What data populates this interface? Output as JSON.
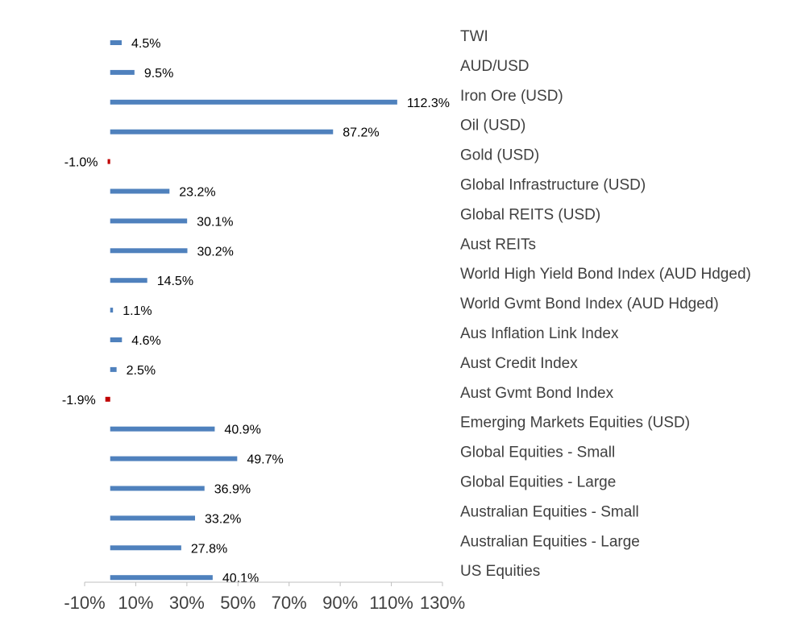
{
  "chart_data": {
    "type": "bar",
    "orientation": "horizontal",
    "categories": [
      "TWI",
      "AUD/USD",
      "Iron Ore (USD)",
      "Oil (USD)",
      "Gold (USD)",
      "Global Infrastructure (USD)",
      "Global REITS (USD)",
      "Aust REITs",
      "World High Yield Bond Index (AUD Hdged)",
      "World Gvmt Bond Index (AUD Hdged)",
      "Aus Inflation Link Index",
      "Aust Credit Index",
      "Aust Gvmt Bond Index",
      "Emerging Markets Equities (USD)",
      "Global Equities - Small",
      "Global Equities - Large",
      "Australian Equities - Small",
      "Australian Equities - Large",
      "US Equities"
    ],
    "values": [
      4.5,
      9.5,
      112.3,
      87.2,
      -1.0,
      23.2,
      30.1,
      30.2,
      14.5,
      1.1,
      4.6,
      2.5,
      -1.9,
      40.9,
      49.7,
      36.9,
      33.2,
      27.8,
      40.1
    ],
    "value_labels": [
      "4.5%",
      "9.5%",
      "112.3%",
      "87.2%",
      "-1.0%",
      "23.2%",
      "30.1%",
      "30.2%",
      "14.5%",
      "1.1%",
      "4.6%",
      "2.5%",
      "-1.9%",
      "40.9%",
      "49.7%",
      "36.9%",
      "33.2%",
      "27.8%",
      "40.1%"
    ],
    "x_ticks": [
      -10,
      10,
      30,
      50,
      70,
      90,
      110,
      130
    ],
    "x_tick_labels": [
      "-10%",
      "10%",
      "30%",
      "50%",
      "70%",
      "90%",
      "110%",
      "130%"
    ],
    "xlim": [
      -10,
      130
    ],
    "title": "",
    "xlabel": "",
    "ylabel": "",
    "grid": false,
    "legend": "none",
    "category_labels_side": "right",
    "colors": {
      "positive": "#4F81BD",
      "negative": "#C00000",
      "axis": "#BFBFBF",
      "label_text": "#404040",
      "value_text": "#000000"
    }
  }
}
